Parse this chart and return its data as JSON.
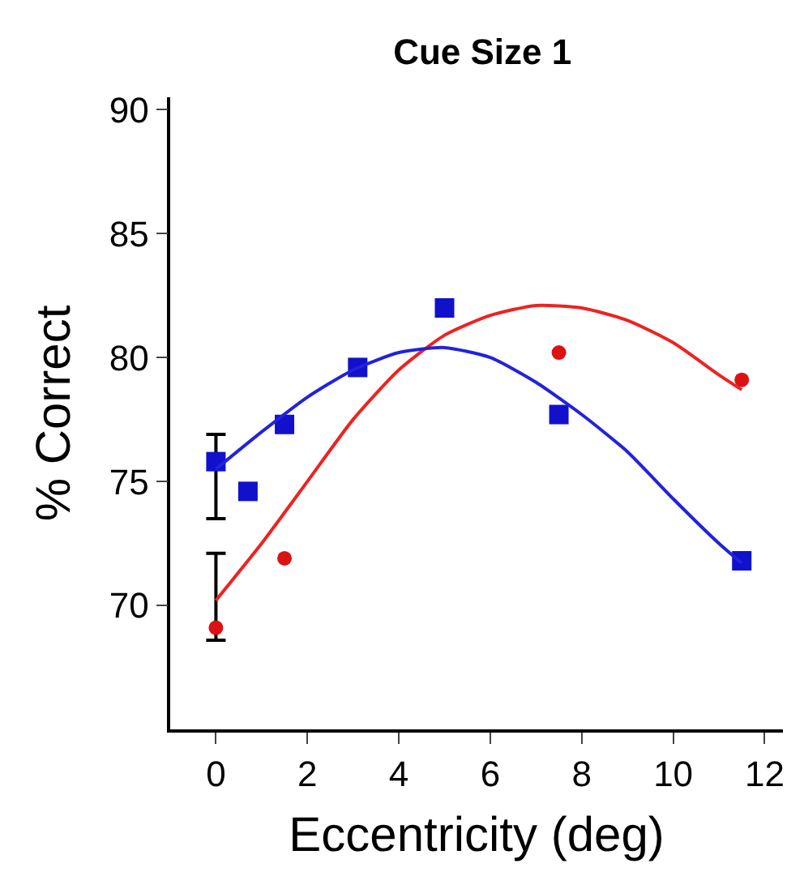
{
  "chart_data": {
    "type": "scatter",
    "title": "Cue Size 1",
    "xlabel": "Eccentricity (deg)",
    "ylabel": "% Correct",
    "xlim": [
      -1,
      12.4
    ],
    "ylim": [
      65,
      90.5
    ],
    "xticks": [
      0,
      2,
      4,
      6,
      8,
      10,
      12
    ],
    "yticks": [
      70,
      75,
      80,
      85,
      90
    ],
    "series": [
      {
        "marker": "circle",
        "color": "#dd1111",
        "x": [
          0,
          1.5,
          7.5,
          11.5
        ],
        "values": [
          69.1,
          71.9,
          80.2,
          79.1
        ],
        "errors": [
          [
            68.6,
            72.1
          ],
          null,
          null,
          null
        ]
      },
      {
        "marker": "square",
        "color": "#1111cc",
        "x": [
          0,
          0.7,
          1.5,
          3.1,
          5,
          7.5,
          11.5
        ],
        "values": [
          75.8,
          74.6,
          77.3,
          79.6,
          82.0,
          77.7,
          71.8
        ],
        "errors": [
          [
            73.5,
            76.9
          ],
          null,
          null,
          null,
          null,
          null,
          null
        ]
      },
      {
        "type": "line",
        "marker": "none",
        "color": "#ee2222",
        "x": [
          0,
          1,
          2,
          3,
          4,
          5,
          6,
          7,
          8,
          9,
          10,
          11,
          11.5
        ],
        "values": [
          70.2,
          72.5,
          75.0,
          77.5,
          79.5,
          80.9,
          81.7,
          82.1,
          82.0,
          81.5,
          80.6,
          79.3,
          78.7
        ]
      },
      {
        "type": "line",
        "marker": "none",
        "color": "#2222dd",
        "x": [
          0,
          1,
          2,
          3,
          4,
          5,
          6,
          7,
          8,
          9,
          10,
          11,
          11.5
        ],
        "values": [
          75.5,
          77.0,
          78.4,
          79.5,
          80.2,
          80.4,
          80.0,
          79.0,
          77.7,
          76.2,
          74.3,
          72.5,
          71.7
        ]
      }
    ]
  }
}
